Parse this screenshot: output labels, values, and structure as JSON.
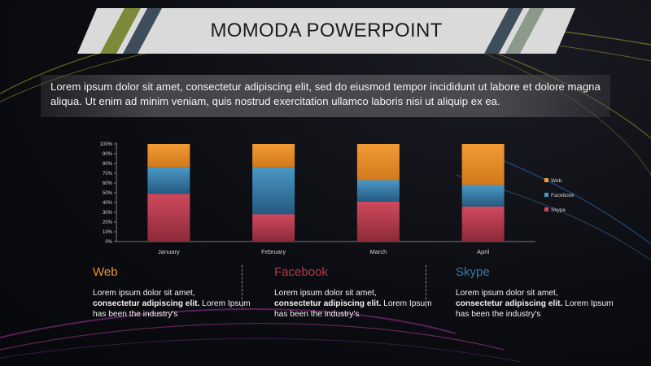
{
  "title": "MOMODA POWERPOINT",
  "intro": "Lorem ipsum dolor sit amet, consectetur adipiscing elit, sed do eiusmod tempor incididunt ut labore et dolore magna aliqua. Ut enim ad minim veniam, quis nostrud exercitation ullamco laboris nisi ut aliquip ex ea.",
  "colors": {
    "web": "#e8902e",
    "facebook": "#3a7aa3",
    "skype": "#b23a4c",
    "title_banner": "#dadada"
  },
  "chart_data": {
    "type": "bar",
    "stacked": true,
    "categories": [
      "January",
      "February",
      "March",
      "April"
    ],
    "series": [
      {
        "name": "Skype",
        "values": [
          0.49,
          0.28,
          0.41,
          0.36
        ]
      },
      {
        "name": "Facebook",
        "values": [
          0.27,
          0.48,
          0.22,
          0.22
        ]
      },
      {
        "name": "Web",
        "values": [
          0.24,
          0.24,
          0.37,
          0.42
        ]
      }
    ],
    "ylim": [
      0,
      1
    ],
    "yticks": [
      "0%",
      "10%",
      "20%",
      "30%",
      "40%",
      "50%",
      "60%",
      "70%",
      "80%",
      "90%",
      "100%"
    ],
    "legend": [
      "Web",
      "Facebook",
      "Skype"
    ],
    "legend_position": "right",
    "grid": false
  },
  "columns": [
    {
      "title": "Web",
      "text1": "Lorem ipsum dolor sit amet,",
      "text2": "consectetur adipiscing elit.",
      "text3": " Lorem Ipsum has been the industry's"
    },
    {
      "title": "Facebook",
      "text1": "Lorem ipsum dolor sit amet,",
      "text2": "consectetur adipiscing elit.",
      "text3": " Lorem Ipsum has been the industry's"
    },
    {
      "title": "Skype",
      "text1": "Lorem ipsum dolor sit amet,",
      "text2": "consectetur adipiscing elit.",
      "text3": " Lorem Ipsum has been the industry's"
    }
  ]
}
